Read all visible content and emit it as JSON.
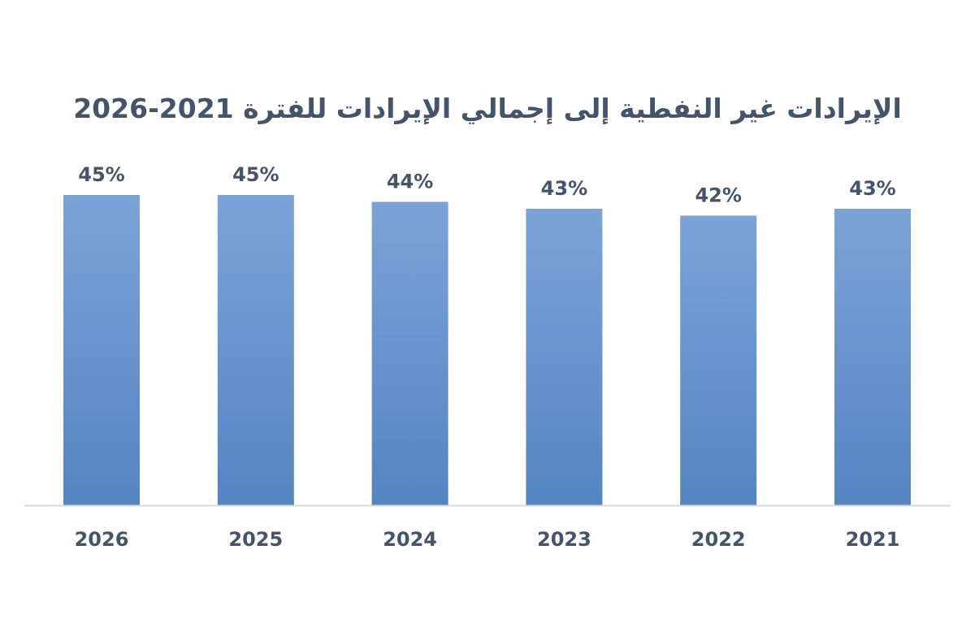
{
  "chart_data": {
    "type": "bar",
    "title": "الإيرادات غير النفطية إلى إجمالي الإيرادات للفترة 2021-2026",
    "categories": [
      "2026",
      "2025",
      "2024",
      "2023",
      "2022",
      "2021"
    ],
    "values": [
      45,
      45,
      44,
      43,
      42,
      43
    ],
    "value_labels": [
      "45%",
      "45%",
      "44%",
      "43%",
      "42%",
      "43%"
    ],
    "xlabel": "",
    "ylabel": "",
    "ylim": [
      0,
      45
    ],
    "grid": false,
    "legend": "none",
    "bar_color_top": "#7ba3d8",
    "bar_color_bottom": "#5585c2",
    "text_color": "#44546a",
    "axis_color": "#d9d9d9"
  }
}
